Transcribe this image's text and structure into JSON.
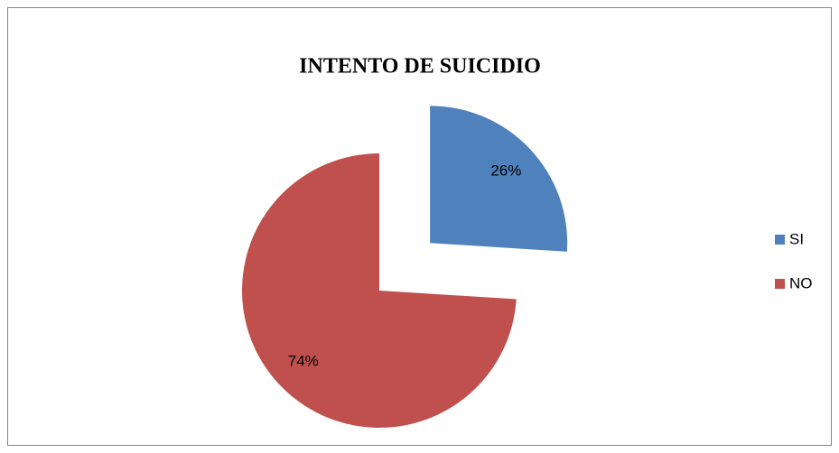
{
  "chart_data": {
    "type": "pie",
    "title": "INTENTO DE SUICIDIO",
    "categories": [
      "SI",
      "NO"
    ],
    "values": [
      26,
      74
    ],
    "value_labels": [
      "26%",
      "74%"
    ],
    "colors": [
      "#4f81bd",
      "#c0504d"
    ],
    "legend": "right"
  }
}
